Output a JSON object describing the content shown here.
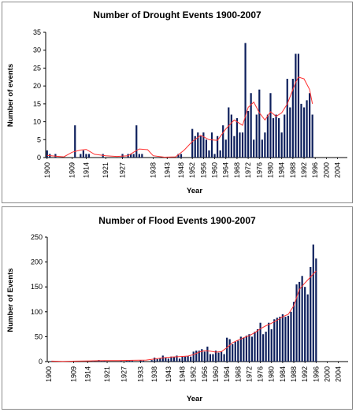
{
  "chart_data": [
    {
      "type": "bar",
      "title": "Number of Drought Events 1900-2007",
      "xlabel": "Year",
      "ylabel": "Number of events",
      "ylim": [
        0,
        35
      ],
      "yticks": [
        0,
        5,
        10,
        15,
        20,
        25,
        30,
        35
      ],
      "x_start": 1900,
      "x_end": 2007,
      "xticks": [
        1900,
        1909,
        1914,
        1921,
        1927,
        1938,
        1943,
        1948,
        1952,
        1956,
        1960,
        1964,
        1968,
        1972,
        1976,
        1980,
        1984,
        1988,
        1992,
        1996,
        2000,
        2004
      ],
      "bar_color": "#0d1f5c",
      "trend_color": "#ff3030",
      "series": [
        {
          "values": [
            {
              "year": 1900,
              "value": 2
            },
            {
              "year": 1901,
              "value": 1
            },
            {
              "year": 1903,
              "value": 1
            },
            {
              "year": 1910,
              "value": 9
            },
            {
              "year": 1912,
              "value": 1
            },
            {
              "year": 1913,
              "value": 2
            },
            {
              "year": 1914,
              "value": 1
            },
            {
              "year": 1915,
              "value": 1
            },
            {
              "year": 1920,
              "value": 1
            },
            {
              "year": 1927,
              "value": 1
            },
            {
              "year": 1929,
              "value": 1
            },
            {
              "year": 1930,
              "value": 1
            },
            {
              "year": 1931,
              "value": 1
            },
            {
              "year": 1932,
              "value": 9
            },
            {
              "year": 1933,
              "value": 1
            },
            {
              "year": 1934,
              "value": 1
            },
            {
              "year": 1947,
              "value": 1
            },
            {
              "year": 1948,
              "value": 1
            },
            {
              "year": 1952,
              "value": 8
            },
            {
              "year": 1953,
              "value": 6
            },
            {
              "year": 1954,
              "value": 7
            },
            {
              "year": 1955,
              "value": 6
            },
            {
              "year": 1956,
              "value": 7
            },
            {
              "year": 1957,
              "value": 5
            },
            {
              "year": 1958,
              "value": 2
            },
            {
              "year": 1959,
              "value": 7
            },
            {
              "year": 1960,
              "value": 1
            },
            {
              "year": 1961,
              "value": 6
            },
            {
              "year": 1962,
              "value": 2
            },
            {
              "year": 1963,
              "value": 9
            },
            {
              "year": 1964,
              "value": 5
            },
            {
              "year": 1965,
              "value": 14
            },
            {
              "year": 1966,
              "value": 12
            },
            {
              "year": 1967,
              "value": 6
            },
            {
              "year": 1968,
              "value": 11
            },
            {
              "year": 1969,
              "value": 7
            },
            {
              "year": 1970,
              "value": 7
            },
            {
              "year": 1971,
              "value": 32
            },
            {
              "year": 1972,
              "value": 13
            },
            {
              "year": 1973,
              "value": 18
            },
            {
              "year": 1974,
              "value": 5
            },
            {
              "year": 1975,
              "value": 12
            },
            {
              "year": 1976,
              "value": 19
            },
            {
              "year": 1977,
              "value": 5
            },
            {
              "year": 1978,
              "value": 7
            },
            {
              "year": 1979,
              "value": 12
            },
            {
              "year": 1980,
              "value": 18
            },
            {
              "year": 1981,
              "value": 11
            },
            {
              "year": 1982,
              "value": 12
            },
            {
              "year": 1983,
              "value": 11
            },
            {
              "year": 1984,
              "value": 7
            },
            {
              "year": 1985,
              "value": 12
            },
            {
              "year": 1986,
              "value": 22
            },
            {
              "year": 1987,
              "value": 14
            },
            {
              "year": 1988,
              "value": 22
            },
            {
              "year": 1989,
              "value": 29
            },
            {
              "year": 1990,
              "value": 29
            },
            {
              "year": 1991,
              "value": 15
            },
            {
              "year": 1992,
              "value": 14
            },
            {
              "year": 1993,
              "value": 16
            },
            {
              "year": 1994,
              "value": 18
            },
            {
              "year": 1995,
              "value": 12
            }
          ]
        },
        {
          "type": "line",
          "values": [
            {
              "year": 1900,
              "value": 0.6
            },
            {
              "year": 1903,
              "value": 0.4
            },
            {
              "year": 1906,
              "value": 0.2
            },
            {
              "year": 1909,
              "value": 1.5
            },
            {
              "year": 1912,
              "value": 2.1
            },
            {
              "year": 1914,
              "value": 2.3
            },
            {
              "year": 1917,
              "value": 0.9
            },
            {
              "year": 1921,
              "value": 0.5
            },
            {
              "year": 1925,
              "value": 0.3
            },
            {
              "year": 1929,
              "value": 0.5
            },
            {
              "year": 1931,
              "value": 1.5
            },
            {
              "year": 1933,
              "value": 2.4
            },
            {
              "year": 1936,
              "value": 2.2
            },
            {
              "year": 1938,
              "value": 0.5
            },
            {
              "year": 1942,
              "value": 0.1
            },
            {
              "year": 1946,
              "value": 0.2
            },
            {
              "year": 1949,
              "value": 2.0
            },
            {
              "year": 1952,
              "value": 4.5
            },
            {
              "year": 1955,
              "value": 6.2
            },
            {
              "year": 1958,
              "value": 5.0
            },
            {
              "year": 1961,
              "value": 4.8
            },
            {
              "year": 1964,
              "value": 8.0
            },
            {
              "year": 1967,
              "value": 10.5
            },
            {
              "year": 1970,
              "value": 9.0
            },
            {
              "year": 1972,
              "value": 14.0
            },
            {
              "year": 1974,
              "value": 15.5
            },
            {
              "year": 1976,
              "value": 12.5
            },
            {
              "year": 1978,
              "value": 10.5
            },
            {
              "year": 1980,
              "value": 12.8
            },
            {
              "year": 1982,
              "value": 11.5
            },
            {
              "year": 1984,
              "value": 12.5
            },
            {
              "year": 1986,
              "value": 15.0
            },
            {
              "year": 1988,
              "value": 19.0
            },
            {
              "year": 1989,
              "value": 21.0
            },
            {
              "year": 1990,
              "value": 22.5
            },
            {
              "year": 1992,
              "value": 22.0
            },
            {
              "year": 1994,
              "value": 19.0
            },
            {
              "year": 1995,
              "value": 15.0
            }
          ]
        }
      ]
    },
    {
      "type": "bar",
      "title": "Number of Flood Events 1900-2007",
      "xlabel": "Year",
      "ylabel": "Number of Events",
      "ylim": [
        0,
        250
      ],
      "yticks": [
        0,
        50,
        100,
        150,
        200,
        250
      ],
      "x_start": 1900,
      "x_end": 2007,
      "xticks": [
        1900,
        1909,
        1914,
        1921,
        1927,
        1933,
        1938,
        1943,
        1948,
        1952,
        1956,
        1960,
        1964,
        1968,
        1972,
        1976,
        1980,
        1984,
        1988,
        1992,
        1996,
        2000,
        2004
      ],
      "bar_color": "#0d1f5c",
      "trend_color": "#ff3030",
      "series": [
        {
          "values": [
            {
              "year": 1901,
              "value": 1
            },
            {
              "year": 1903,
              "value": 1
            },
            {
              "year": 1916,
              "value": 2
            },
            {
              "year": 1918,
              "value": 3
            },
            {
              "year": 1919,
              "value": 2
            },
            {
              "year": 1920,
              "value": 2
            },
            {
              "year": 1926,
              "value": 2
            },
            {
              "year": 1928,
              "value": 2
            },
            {
              "year": 1929,
              "value": 3
            },
            {
              "year": 1930,
              "value": 2
            },
            {
              "year": 1933,
              "value": 3
            },
            {
              "year": 1934,
              "value": 2
            },
            {
              "year": 1937,
              "value": 3
            },
            {
              "year": 1938,
              "value": 8
            },
            {
              "year": 1939,
              "value": 5
            },
            {
              "year": 1940,
              "value": 7
            },
            {
              "year": 1941,
              "value": 12
            },
            {
              "year": 1942,
              "value": 8
            },
            {
              "year": 1943,
              "value": 6
            },
            {
              "year": 1944,
              "value": 10
            },
            {
              "year": 1945,
              "value": 9
            },
            {
              "year": 1946,
              "value": 12
            },
            {
              "year": 1947,
              "value": 6
            },
            {
              "year": 1948,
              "value": 10
            },
            {
              "year": 1949,
              "value": 10
            },
            {
              "year": 1950,
              "value": 11
            },
            {
              "year": 1951,
              "value": 10
            },
            {
              "year": 1952,
              "value": 20
            },
            {
              "year": 1953,
              "value": 22
            },
            {
              "year": 1954,
              "value": 22
            },
            {
              "year": 1955,
              "value": 25
            },
            {
              "year": 1956,
              "value": 20
            },
            {
              "year": 1957,
              "value": 30
            },
            {
              "year": 1958,
              "value": 15
            },
            {
              "year": 1959,
              "value": 15
            },
            {
              "year": 1960,
              "value": 22
            },
            {
              "year": 1961,
              "value": 18
            },
            {
              "year": 1962,
              "value": 20
            },
            {
              "year": 1963,
              "value": 15
            },
            {
              "year": 1964,
              "value": 48
            },
            {
              "year": 1965,
              "value": 45
            },
            {
              "year": 1966,
              "value": 35
            },
            {
              "year": 1967,
              "value": 40
            },
            {
              "year": 1968,
              "value": 42
            },
            {
              "year": 1969,
              "value": 50
            },
            {
              "year": 1970,
              "value": 48
            },
            {
              "year": 1971,
              "value": 52
            },
            {
              "year": 1972,
              "value": 55
            },
            {
              "year": 1973,
              "value": 50
            },
            {
              "year": 1974,
              "value": 60
            },
            {
              "year": 1975,
              "value": 65
            },
            {
              "year": 1976,
              "value": 78
            },
            {
              "year": 1977,
              "value": 55
            },
            {
              "year": 1978,
              "value": 60
            },
            {
              "year": 1979,
              "value": 78
            },
            {
              "year": 1980,
              "value": 65
            },
            {
              "year": 1981,
              "value": 85
            },
            {
              "year": 1982,
              "value": 88
            },
            {
              "year": 1983,
              "value": 90
            },
            {
              "year": 1984,
              "value": 95
            },
            {
              "year": 1985,
              "value": 90
            },
            {
              "year": 1986,
              "value": 92
            },
            {
              "year": 1987,
              "value": 100
            },
            {
              "year": 1988,
              "value": 120
            },
            {
              "year": 1989,
              "value": 155
            },
            {
              "year": 1990,
              "value": 160
            },
            {
              "year": 1991,
              "value": 172
            },
            {
              "year": 1992,
              "value": 150
            },
            {
              "year": 1993,
              "value": 135
            },
            {
              "year": 1994,
              "value": 190
            },
            {
              "year": 1995,
              "value": 235
            },
            {
              "year": 1996,
              "value": 207
            }
          ]
        },
        {
          "type": "line",
          "values": [
            {
              "year": 1901,
              "value": 1
            },
            {
              "year": 1905,
              "value": 0.5
            },
            {
              "year": 1910,
              "value": 1
            },
            {
              "year": 1915,
              "value": 1.5
            },
            {
              "year": 1920,
              "value": 2
            },
            {
              "year": 1925,
              "value": 2
            },
            {
              "year": 1930,
              "value": 2.5
            },
            {
              "year": 1935,
              "value": 3
            },
            {
              "year": 1938,
              "value": 5
            },
            {
              "year": 1941,
              "value": 7.5
            },
            {
              "year": 1944,
              "value": 9
            },
            {
              "year": 1947,
              "value": 10
            },
            {
              "year": 1950,
              "value": 11
            },
            {
              "year": 1952,
              "value": 14
            },
            {
              "year": 1954,
              "value": 19
            },
            {
              "year": 1956,
              "value": 22
            },
            {
              "year": 1958,
              "value": 21
            },
            {
              "year": 1960,
              "value": 19
            },
            {
              "year": 1962,
              "value": 20
            },
            {
              "year": 1964,
              "value": 28
            },
            {
              "year": 1966,
              "value": 38
            },
            {
              "year": 1968,
              "value": 43
            },
            {
              "year": 1970,
              "value": 48
            },
            {
              "year": 1972,
              "value": 52
            },
            {
              "year": 1974,
              "value": 58
            },
            {
              "year": 1976,
              "value": 66
            },
            {
              "year": 1978,
              "value": 72
            },
            {
              "year": 1980,
              "value": 77
            },
            {
              "year": 1982,
              "value": 83
            },
            {
              "year": 1984,
              "value": 90
            },
            {
              "year": 1986,
              "value": 95
            },
            {
              "year": 1988,
              "value": 112
            },
            {
              "year": 1990,
              "value": 145
            },
            {
              "year": 1992,
              "value": 158
            },
            {
              "year": 1994,
              "value": 170
            },
            {
              "year": 1996,
              "value": 182
            }
          ]
        }
      ]
    }
  ]
}
